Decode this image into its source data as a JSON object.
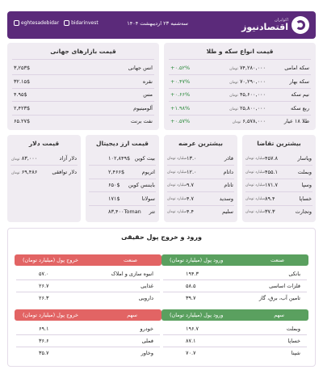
{
  "header": {
    "logo_sub": "اکوایران",
    "logo_main": "اقتصادنیوز",
    "date": "سه‌شنبه ۲۳ اردیبهشت ۱۴۰۴",
    "social1": "bidarinvest",
    "social2": "eghtesadebidar"
  },
  "coins": {
    "title": "قیمت انواع سکه و طلا",
    "unit": "تومان",
    "rows": [
      {
        "name": "سکه امامی",
        "price": "۷۴,۲۸۰,۰۰۰",
        "change": "+۰.۵۲%"
      },
      {
        "name": "سکه بهار",
        "price": "۷۰,۲۹۰,۰۰۰",
        "change": "+۰.۴۷%"
      },
      {
        "name": "نیم سکه",
        "price": "۴۵,۶۰۰,۰۰۰",
        "change": "+۰.۶۶%"
      },
      {
        "name": "ربع سکه",
        "price": "۲۵,۸۰۰,۰۰۰",
        "change": "+۱.۹۸%"
      },
      {
        "name": "طلا ۱۸ عیار",
        "price": "۶,۵۷۸,۰۰۰",
        "change": "+۰.۵۷%"
      }
    ]
  },
  "global": {
    "title": "قیمت بازارهای جهانی",
    "rows": [
      {
        "name": "انس جهانی",
        "value": "۳,۲۵۳$"
      },
      {
        "name": "نقره",
        "value": "۳۲.۱۵$"
      },
      {
        "name": "مس",
        "value": "۴.۹۵$"
      },
      {
        "name": "آلومینیوم",
        "value": "۲,۴۲۳$"
      },
      {
        "name": "نفت برنت",
        "value": "۶۵.۲۷$"
      }
    ]
  },
  "demand": {
    "title": "بیشترین تقاضا",
    "unit": "میلیارد تومان",
    "rows": [
      {
        "name": "ویاسار",
        "value": "۴۵۷.۸"
      },
      {
        "name": "وبملت",
        "value": "۴۵۵.۱"
      },
      {
        "name": "وسپا",
        "value": "۱۷۱.۷"
      },
      {
        "name": "خساپا",
        "value": "۸۹.۴"
      },
      {
        "name": "وتجارت",
        "value": "۳۷.۳"
      }
    ]
  },
  "supply": {
    "title": "بیشترین عرضه",
    "unit": "میلیارد تومان",
    "rows": [
      {
        "name": "فاذر",
        "value": "۱۳.۰"
      },
      {
        "name": "داتام",
        "value": "۱۲.۰"
      },
      {
        "name": "تاتام",
        "value": "۹.۷"
      },
      {
        "name": "وسدید",
        "value": "۴.۷"
      },
      {
        "name": "سلیم",
        "value": "۴.۴"
      }
    ]
  },
  "crypto": {
    "title": "قیمت ارز دیجیتال",
    "rows": [
      {
        "name": "بیت کوین",
        "value": "۱۰۲,۸۴۹$"
      },
      {
        "name": "اتریوم",
        "value": "۲,۴۶۶$"
      },
      {
        "name": "بایننس کوین",
        "value": "۶۵۰$"
      },
      {
        "name": "سولانا",
        "value": "۱۷۱$"
      },
      {
        "name": "تتر",
        "value": "۸۳,۴۰۰Toman"
      }
    ]
  },
  "dollar": {
    "title": "قیمت دلار",
    "rows": [
      {
        "name": "دلار آزاد",
        "value": "۸۳,۰۰۰",
        "unit": "تومان"
      },
      {
        "name": "دلار توافقی",
        "value": "۶۹,۴۸۶",
        "unit": "تومان"
      }
    ]
  },
  "flows": {
    "title": "ورود و خروج پول حقیقی",
    "in_industry": {
      "col1": "صنعت",
      "col2": "ورود پول (میلیارد تومان)",
      "rows": [
        {
          "name": "بانکی",
          "value": "۱۹۴.۳"
        },
        {
          "name": "فلزات اساسی",
          "value": "۵۸.۵"
        },
        {
          "name": "تامین آب، برق، گاز",
          "value": "۳۹.۷"
        }
      ]
    },
    "out_industry": {
      "col1": "صنعت",
      "col2": "خروج پول (میلیارد تومان)",
      "rows": [
        {
          "name": "انبوه سازی و املاک",
          "value": "۵۷.۰"
        },
        {
          "name": "غذایی",
          "value": "۲۶.۷"
        },
        {
          "name": "دارویی",
          "value": "۲۶.۳"
        }
      ]
    },
    "in_stock": {
      "col1": "سهم",
      "col2": "ورود پول (میلیارد تومان)",
      "rows": [
        {
          "name": "وبملت",
          "value": "۱۹۶.۷"
        },
        {
          "name": "خساپا",
          "value": "۸۷.۱"
        },
        {
          "name": "شپنا",
          "value": "۷۰.۷"
        }
      ]
    },
    "out_stock": {
      "col1": "سهم",
      "col2": "خروج پول (میلیارد تومان)",
      "rows": [
        {
          "name": "خودرو",
          "value": "۶۹.۱"
        },
        {
          "name": "فملی",
          "value": "۳۶.۶"
        },
        {
          "name": "وخاور",
          "value": "۳۵.۷"
        }
      ]
    }
  }
}
